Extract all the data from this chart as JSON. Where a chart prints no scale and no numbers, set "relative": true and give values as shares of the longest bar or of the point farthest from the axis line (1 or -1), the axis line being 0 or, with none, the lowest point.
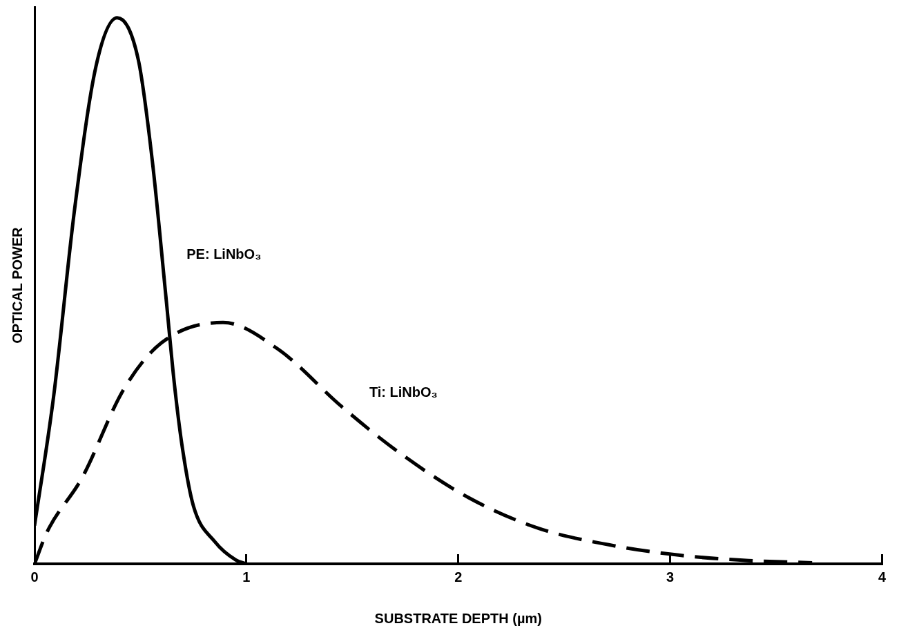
{
  "chart_data": {
    "type": "line",
    "relative": true,
    "xlabel": "SUBSTRATE DEPTH (µm)",
    "ylabel": "OPTICAL POWER",
    "xlim": [
      0,
      4
    ],
    "xticks": [
      0,
      1,
      2,
      3,
      4
    ],
    "grid": false,
    "legend": false,
    "marker": "none",
    "series": [
      {
        "name": "PE: LiNbO₃",
        "color": "#000000",
        "line_style": "solid",
        "x": [
          0,
          0.09,
          0.19,
          0.29,
          0.39,
          0.49,
          0.556,
          0.62,
          0.66,
          0.7,
          0.75,
          0.85,
          0.95,
          1.0
        ],
        "values": [
          0.07,
          0.306,
          0.652,
          0.911,
          1.0,
          0.923,
          0.738,
          0.49,
          0.33,
          0.207,
          0.106,
          0.041,
          0.007,
          0
        ]
      },
      {
        "name": "Ti: LiNbO₃",
        "color": "#000000",
        "line_style": "dashed",
        "x": [
          0,
          0.06,
          0.225,
          0.42,
          0.6,
          0.89,
          1.15,
          1.45,
          1.71,
          2.05,
          2.38,
          2.71,
          3.04,
          3.37,
          3.67
        ],
        "values": [
          0,
          0.059,
          0.158,
          0.319,
          0.405,
          0.442,
          0.393,
          0.288,
          0.207,
          0.121,
          0.065,
          0.035,
          0.016,
          0.006,
          0.002
        ]
      }
    ]
  }
}
